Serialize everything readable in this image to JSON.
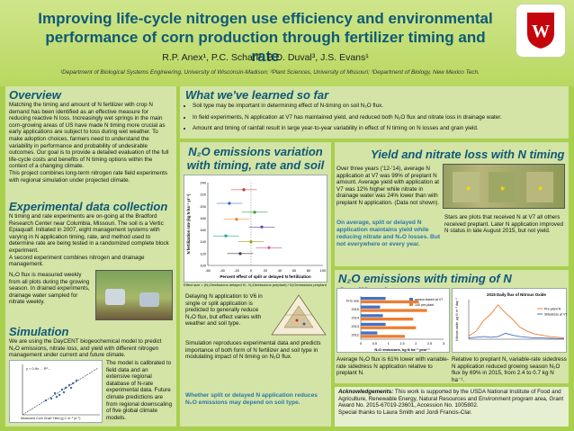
{
  "header": {
    "title": "Improving life-cycle nitrogen use efficiency and environmental performance of corn production through fertilizer timing and rate",
    "authors": "R.P. Anex¹, P.C. Scharf², B.D. Duval³, J.S. Evans¹",
    "affiliations": "¹Department of Biological Systems Engineering, University of Wisconsin-Madison; ²Plant Sciences, University of Missouri; ³Department of Biology, New Mexico Tech."
  },
  "overview": {
    "heading": "Overview",
    "text": "Matching the timing and amount of N fertilizer with crop N demand has been identified as an effective measure for reducing reactive N loss. Increasingly wet springs in the main corn-growing areas of US have made N timing more crucial as early applications are subject to loss during wet weather. To make adoption choices, farmers need to understand the variability in performance and probability of undesirable outcomes. Our goal is to provide a detailed evaluation of the full life-cycle costs and benefits of N timing options within the context of a changing climate.",
    "text2": "This project combines long-term nitrogen rate field experiments with regional simulation under projected climate."
  },
  "data_collection": {
    "heading": "Experimental data collection",
    "text": "N timing and rate experiments are on-going at the Bradford Research Center near Columbia, Missouri. The soil is a Vertic Epiaqualf. Initiated in 2007, eight management systems with varying in N application timing, rate, and method used to determine rate are being tested in a randomized complete block experiment.",
    "text2": "A second experiment combines nitrogen and drainage management.",
    "caption": "N₂O flux is measured weekly from all plots during the growing season. In drained experiments, drainage water sampled for nitrate weekly."
  },
  "simulation": {
    "heading": "Simulation",
    "text": "We are using the DayCENT biogeochemical model to predict N₂O emissions, nitrate loss, and yield with different nitrogen management under current and future climate.",
    "caption": "The model is calibrated to field data and an extensive regional database of N-rate experimental data. Future climate predictions are from regional downscaling of five global climate models.",
    "plot_xlabel": "Measured Corn Grain Yield (g C m⁻² yr⁻¹)",
    "plot_ylabel": "Simulated Corn Grain Yield",
    "plot_eq": "y = 0.9x ... R²..."
  },
  "learned": {
    "heading": "What we've learned so far",
    "bullets": [
      "Soil type may be important in determining effect of N-timing on soil N₂O flux.",
      "In field experiments, N application at V7 has maintained yield, and reduced both N₂O flux and nitrate loss in drainage water.",
      "Amount and timing of rainfall result in large year-to-year variability in effect of N timing on N losses and grain yield."
    ]
  },
  "n2o_variation": {
    "heading": "N₂O emissions variation with timing, rate and soil type",
    "chart_ylabel": "N fertilization rate (kg N ha⁻¹ yr⁻¹)",
    "chart_xlabel": "Percent effect of split or delayed N fertilization",
    "chart_yticks": [
      "100",
      "120",
      "140",
      "160",
      "180",
      "200",
      "220",
      "240"
    ],
    "chart_xticks": [
      "-60",
      "-40",
      "-20",
      "0",
      "20",
      "40",
      "60",
      "80",
      "100"
    ],
    "effect_label": "Effect size =",
    "effect_formula": "(N₂Oemissions delayed N - N₂Oemissions preplant) / N₂Oemissions preplant",
    "delay_text": "Delaying N application to V6 in single or split application is predicted to generally reduce N₂O flux, but effect varies with weather and soil type.",
    "repro_text": "Simulation reproduces experimental data and predicts importance of both form of N fertilizer and soil type in modulating impact of N timing on N₂O flux.",
    "conclusion": "Whether split or delayed N application reduces N₂O emissions may depend on soil type."
  },
  "yield": {
    "heading": "Yield and nitrate loss with N timing",
    "text": "Over three years ('12-'14), average N application at V7 was 99% of preplant N amount. Average yield with application at V7 was 12% higher while nitrate in drainage water was 24% lower than with preplant N application. (Data not shown).",
    "highlight": "On average, split or delayed N application maintains yield while reducing nitrate and N₂O losses. But not everywhere or every year.",
    "stars_text": "Stars are plots that received N at V7 all others received preplant. Later N application improved N status in late August 2015, but not yield."
  },
  "n2o_timing": {
    "heading": "N₂O emissions with timing of N fertilization",
    "bar_xlabel": "N₂O emissions, kg N ha⁻¹ year⁻¹",
    "bar_legend": [
      "sensor-based at V7",
      "140 pre-plant"
    ],
    "bar_text": "Average N₂O flux is 61% lower with variable-rate sidedress N application relative to preplant N.",
    "line_title": "2015 Daily flux of Nitrous Oxide",
    "line_ylabel": "Nitrous oxide, µg N m⁻² day⁻¹",
    "line_legend": [
      "Pre-plant N",
      "Sidedress at V7"
    ],
    "line_text": "Relative to preplant N, variable-rate sidedress N application reduced growing season N₂O flux by 69% in 2015, from 2.4 to 0.7 kg N ha⁻¹."
  },
  "ack": {
    "heading": "Acknowledgements:",
    "text": "This work is supported by the USDA National Institute of Food and Agriculture, Renewable Energy, Natural Resources and Environment program area, Grant Award No. 2015-67019-23601, Accession No. 1005802.",
    "text2": "Special thanks to Laura Smith and Jordi Francis-Clar."
  },
  "chart_data": [
    {
      "type": "scatter",
      "title": "",
      "xlabel": "Percent effect of split or delayed N fertilization",
      "ylabel": "N fertilization rate (kg N ha⁻¹ yr⁻¹)",
      "xlim": [
        -60,
        100
      ],
      "ylim": [
        100,
        240
      ],
      "series": [
        {
          "points": [
            [
              -10,
              228
            ],
            [
              -30,
              205
            ],
            [
              5,
              190
            ],
            [
              -20,
              178
            ],
            [
              15,
              165
            ],
            [
              -35,
              150
            ],
            [
              0,
              140
            ],
            [
              25,
              130
            ],
            [
              -15,
              120
            ]
          ]
        }
      ]
    },
    {
      "type": "bar",
      "title": "",
      "xlabel": "N₂O emissions, kg N ha⁻¹ year⁻¹",
      "categories": [
        "N to use",
        "2015",
        "2014",
        "2013",
        "2012"
      ],
      "series": [
        {
          "name": "sensor-based at V7",
          "values": [
            0.9,
            0.7,
            0.8,
            0.9,
            0.6
          ]
        },
        {
          "name": "140 pre-plant",
          "values": [
            2.1,
            2.4,
            1.9,
            2.0,
            1.6
          ]
        }
      ]
    },
    {
      "type": "line",
      "title": "2015 Daily flux of Nitrous Oxide",
      "ylabel": "Nitrous oxide, µg N m⁻² day⁻¹",
      "series": [
        {
          "name": "Pre-plant N",
          "values": [
            50,
            120,
            280,
            380,
            520,
            400,
            300,
            180,
            120,
            80,
            60,
            40,
            30,
            20
          ]
        },
        {
          "name": "Sidedress at V7",
          "values": [
            20,
            30,
            40,
            30,
            40,
            90,
            60,
            40,
            30,
            20,
            20,
            15,
            10,
            10
          ]
        }
      ]
    }
  ]
}
